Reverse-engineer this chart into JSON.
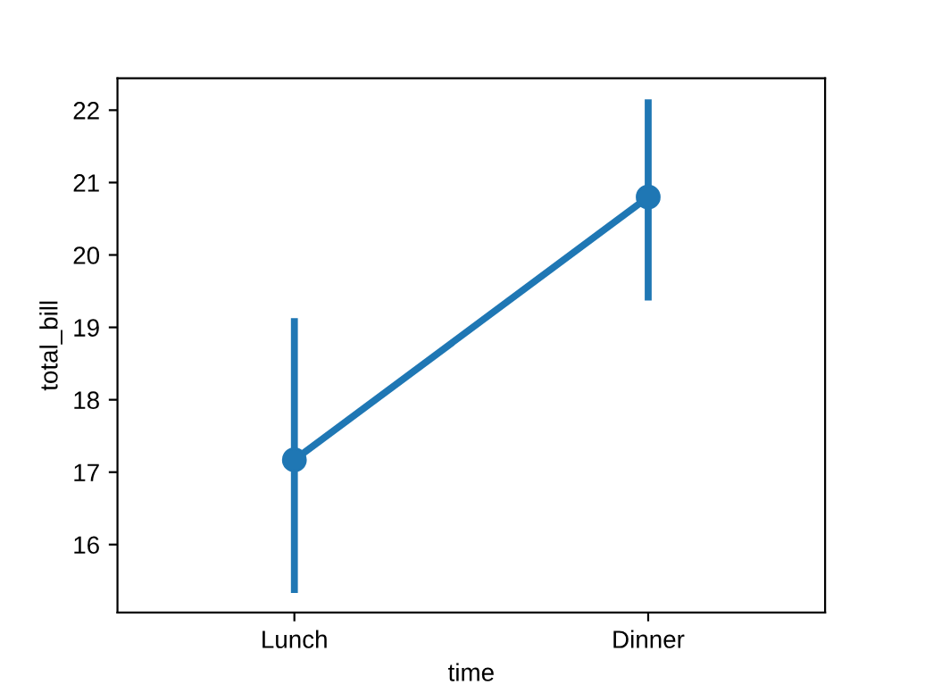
{
  "chart_data": {
    "type": "line",
    "xlabel": "time",
    "ylabel": "total_bill",
    "categories": [
      "Lunch",
      "Dinner"
    ],
    "series": [
      {
        "color": "#1f77b4",
        "values": [
          17.17,
          20.8
        ],
        "errors": [
          [
            15.38,
            19.08
          ],
          [
            19.42,
            22.1
          ]
        ]
      }
    ],
    "ylim": [
      15.06,
      22.44
    ],
    "yticks": [
      16,
      17,
      18,
      19,
      20,
      21,
      22
    ],
    "marker": "circle",
    "line_style": "solid",
    "grid": false
  }
}
